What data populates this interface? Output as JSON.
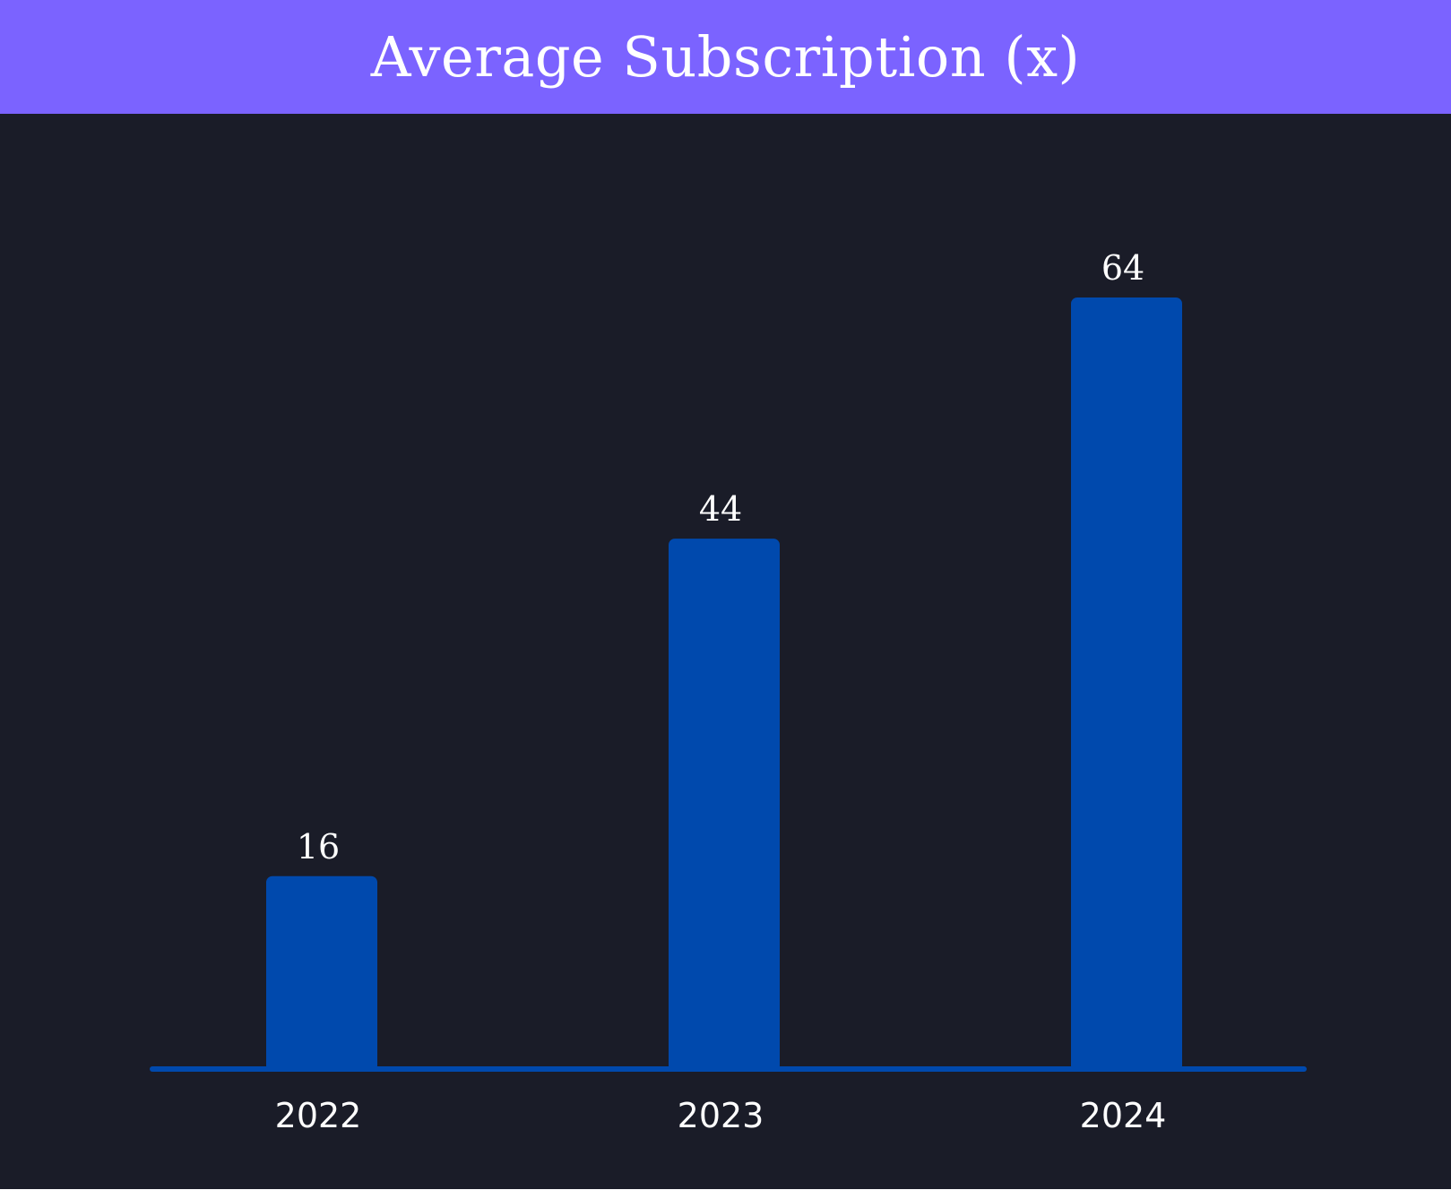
{
  "title": "Average Subscription (x)",
  "colors": {
    "background": "#1a1c28",
    "title_bar": "#7b63ff",
    "bar": "#0049ad",
    "baseline": "#0049ad",
    "text": "#ffffff"
  },
  "chart_data": {
    "type": "bar",
    "title": "Average Subscription (x)",
    "categories": [
      "2022",
      "2023",
      "2024"
    ],
    "values": [
      16,
      44,
      64
    ],
    "data_labels": [
      "16",
      "44",
      "64"
    ],
    "xlabel": "",
    "ylabel": "",
    "ylim": [
      0,
      64
    ],
    "grid": false,
    "legend": "none"
  }
}
